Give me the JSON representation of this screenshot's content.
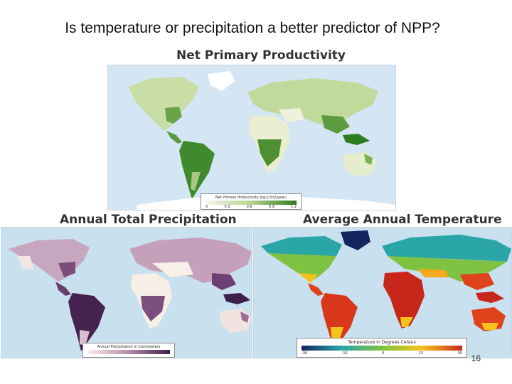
{
  "slide": {
    "question": "Is temperature or precipitation a better predictor of NPP?",
    "page_number": "16"
  },
  "maps": {
    "npp": {
      "title": "Net Primary Productivity",
      "legend_title": "Net Primary Productivity (kg-C/m2/year)",
      "legend_ticks": [
        "0",
        "0.3",
        "0.6",
        "0.9",
        "1.2"
      ],
      "colors": {
        "low": "#f4f7ea",
        "mid": "#b9d38f",
        "high": "#2b7a1f"
      }
    },
    "precip": {
      "title": "Annual Total Precipitation",
      "legend_title": "Annual Precipitation in Centimeters",
      "colors": {
        "low": "#f6efe7",
        "mid": "#b98aa8",
        "high": "#3d1f4d"
      }
    },
    "temp": {
      "title": "Average Annual Temperature",
      "legend_title": "Temperature in Degrees Celsius",
      "legend_ticks": [
        "-30",
        "-15",
        "0",
        "15",
        "30"
      ],
      "colors": {
        "cold": "#15235f",
        "cool": "#2aa6a6",
        "mild": "#7fc241",
        "warm": "#f5c31c",
        "hot": "#c9261b"
      }
    }
  }
}
